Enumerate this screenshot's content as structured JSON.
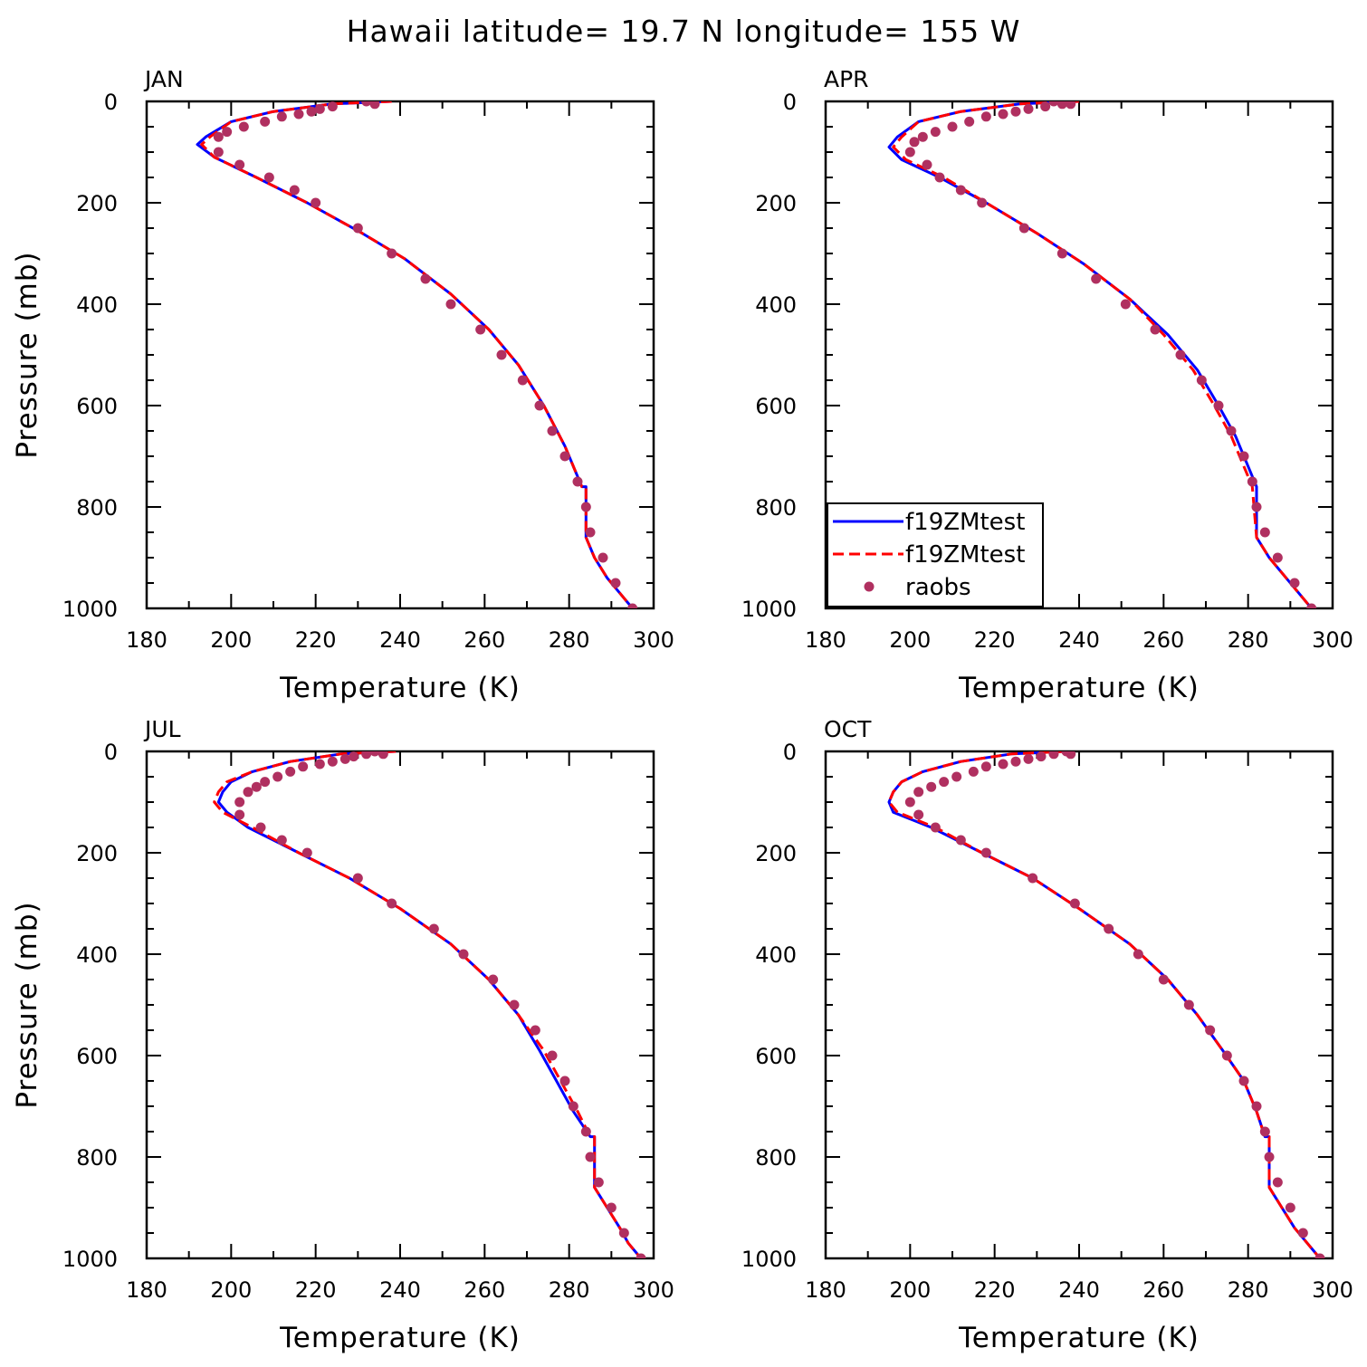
{
  "figure": {
    "title": "Hawaii  latitude= 19.7 N longitude= 155 W"
  },
  "chart_data": [
    {
      "type": "line",
      "panel_label": "JAN",
      "xlabel": "Temperature (K)",
      "ylabel": "Pressure (mb)",
      "xlim": [
        180,
        300
      ],
      "ylim": [
        1000,
        0
      ],
      "xticks": [
        "180",
        "200",
        "220",
        "240",
        "260",
        "280",
        "300"
      ],
      "yticks": [
        "0",
        "200",
        "400",
        "600",
        "800",
        "1000"
      ],
      "legend": false,
      "series": [
        {
          "style": "solid",
          "color": "#0000ff",
          "x": [
            238,
            224,
            210,
            200,
            194,
            192,
            196,
            206,
            218,
            231,
            241,
            252,
            261,
            268,
            274,
            279,
            283,
            284,
            284,
            286,
            289,
            292,
            295
          ],
          "y": [
            0,
            5,
            20,
            40,
            70,
            85,
            110,
            150,
            200,
            260,
            310,
            380,
            450,
            520,
            600,
            680,
            760,
            760,
            860,
            900,
            940,
            970,
            1000
          ]
        },
        {
          "style": "dashed",
          "color": "#ff0000",
          "x": [
            238,
            224,
            210,
            200,
            195,
            193,
            196,
            206,
            218,
            231,
            241,
            252,
            261,
            268,
            274,
            279,
            283,
            284,
            284,
            286,
            289,
            292,
            295
          ],
          "y": [
            0,
            5,
            20,
            40,
            70,
            85,
            110,
            150,
            200,
            260,
            310,
            380,
            450,
            520,
            600,
            680,
            760,
            760,
            860,
            900,
            940,
            970,
            1000
          ]
        },
        {
          "style": "markers",
          "color": "#b03060",
          "x": [
            232,
            234,
            224,
            221,
            219,
            216,
            212,
            208,
            203,
            199,
            197,
            197,
            202,
            209,
            215,
            220,
            230,
            238,
            246,
            252,
            259,
            264,
            269,
            273,
            276,
            279,
            282,
            284,
            285,
            288,
            291,
            295
          ],
          "y": [
            0,
            5,
            10,
            15,
            20,
            25,
            30,
            40,
            50,
            60,
            70,
            100,
            125,
            150,
            175,
            200,
            250,
            300,
            350,
            400,
            450,
            500,
            550,
            600,
            650,
            700,
            750,
            800,
            850,
            900,
            950,
            1000
          ]
        }
      ]
    },
    {
      "type": "line",
      "panel_label": "APR",
      "xlabel": "Temperature (K)",
      "ylabel": "",
      "xlim": [
        180,
        300
      ],
      "ylim": [
        1000,
        0
      ],
      "xticks": [
        "180",
        "200",
        "220",
        "240",
        "260",
        "280",
        "300"
      ],
      "yticks": [
        "0",
        "200",
        "400",
        "600",
        "800",
        "1000"
      ],
      "legend": true,
      "legend_position": "lower-left",
      "legend_entries": [
        {
          "label": "f19ZMtest",
          "style": "solid",
          "color": "#0000ff"
        },
        {
          "label": "f19ZMtest",
          "style": "dashed",
          "color": "#ff0000"
        },
        {
          "label": "raobs",
          "style": "markers",
          "color": "#b03060"
        }
      ],
      "series": [
        {
          "style": "solid",
          "color": "#0000ff",
          "x": [
            240,
            226,
            212,
            202,
            197,
            195,
            198,
            207,
            218,
            230,
            241,
            252,
            261,
            268,
            273,
            277,
            280,
            282,
            282,
            285,
            289,
            292,
            295
          ],
          "y": [
            0,
            5,
            20,
            40,
            70,
            90,
            115,
            150,
            200,
            260,
            320,
            390,
            460,
            530,
            600,
            660,
            720,
            760,
            860,
            900,
            940,
            970,
            1000
          ]
        },
        {
          "style": "dashed",
          "color": "#ff0000",
          "x": [
            240,
            226,
            212,
            202,
            198,
            196,
            199,
            208,
            218,
            230,
            241,
            252,
            260,
            267,
            272,
            276,
            279,
            281,
            282,
            285,
            289,
            292,
            295
          ],
          "y": [
            0,
            5,
            20,
            40,
            70,
            90,
            115,
            150,
            200,
            260,
            320,
            390,
            460,
            530,
            600,
            660,
            720,
            760,
            860,
            900,
            940,
            970,
            1000
          ]
        },
        {
          "style": "markers",
          "color": "#b03060",
          "x": [
            234,
            236,
            238,
            232,
            228,
            225,
            222,
            218,
            214,
            210,
            206,
            203,
            201,
            200,
            204,
            207,
            212,
            217,
            227,
            236,
            244,
            251,
            258,
            264,
            269,
            273,
            276,
            279,
            281,
            282,
            284,
            287,
            291,
            295
          ],
          "y": [
            0,
            5,
            5,
            10,
            15,
            20,
            25,
            30,
            40,
            50,
            60,
            70,
            80,
            100,
            125,
            150,
            175,
            200,
            250,
            300,
            350,
            400,
            450,
            500,
            550,
            600,
            650,
            700,
            750,
            800,
            850,
            900,
            950,
            1000
          ]
        }
      ]
    },
    {
      "type": "line",
      "panel_label": "JUL",
      "xlabel": "Temperature (K)",
      "ylabel": "Pressure (mb)",
      "xlim": [
        180,
        300
      ],
      "ylim": [
        1000,
        0
      ],
      "xticks": [
        "180",
        "200",
        "220",
        "240",
        "260",
        "280",
        "300"
      ],
      "yticks": [
        "0",
        "200",
        "400",
        "600",
        "800",
        "1000"
      ],
      "legend": false,
      "series": [
        {
          "style": "solid",
          "color": "#0000ff",
          "x": [
            239,
            226,
            214,
            205,
            200,
            198,
            197,
            199,
            204,
            216,
            228,
            240,
            252,
            261,
            268,
            273,
            277,
            281,
            285,
            286,
            286,
            289,
            292,
            294,
            297
          ],
          "y": [
            0,
            5,
            20,
            40,
            60,
            80,
            100,
            120,
            150,
            200,
            250,
            310,
            380,
            450,
            520,
            590,
            650,
            710,
            760,
            760,
            860,
            900,
            940,
            970,
            1000
          ]
        },
        {
          "style": "dashed",
          "color": "#ff0000",
          "x": [
            239,
            226,
            214,
            205,
            199,
            197,
            196,
            198,
            205,
            216,
            228,
            240,
            252,
            261,
            268,
            274,
            278,
            282,
            285,
            286,
            286,
            289,
            292,
            294,
            297
          ],
          "y": [
            0,
            5,
            20,
            40,
            60,
            80,
            100,
            120,
            150,
            200,
            250,
            310,
            380,
            450,
            520,
            590,
            650,
            710,
            760,
            760,
            860,
            900,
            940,
            970,
            1000
          ]
        },
        {
          "style": "markers",
          "color": "#b03060",
          "x": [
            234,
            236,
            232,
            229,
            227,
            224,
            221,
            217,
            214,
            211,
            208,
            206,
            204,
            202,
            202,
            207,
            212,
            218,
            230,
            238,
            248,
            255,
            262,
            267,
            272,
            276,
            279,
            281,
            284,
            285,
            287,
            290,
            293,
            297
          ],
          "y": [
            0,
            5,
            5,
            10,
            15,
            20,
            25,
            30,
            40,
            50,
            60,
            70,
            80,
            100,
            125,
            150,
            175,
            200,
            250,
            300,
            350,
            400,
            450,
            500,
            550,
            600,
            650,
            700,
            750,
            800,
            850,
            900,
            950,
            1000
          ]
        }
      ]
    },
    {
      "type": "line",
      "panel_label": "OCT",
      "xlabel": "Temperature (K)",
      "ylabel": "",
      "xlim": [
        180,
        300
      ],
      "ylim": [
        1000,
        0
      ],
      "xticks": [
        "180",
        "200",
        "220",
        "240",
        "260",
        "280",
        "300"
      ],
      "yticks": [
        "0",
        "200",
        "400",
        "600",
        "800",
        "1000"
      ],
      "legend": false,
      "series": [
        {
          "style": "solid",
          "color": "#0000ff",
          "x": [
            237,
            224,
            212,
            203,
            198,
            196,
            195,
            196,
            205,
            217,
            229,
            240,
            252,
            261,
            268,
            274,
            279,
            282,
            284,
            285,
            285,
            288,
            291,
            294,
            297
          ],
          "y": [
            0,
            5,
            20,
            40,
            60,
            80,
            100,
            120,
            150,
            200,
            250,
            310,
            380,
            450,
            520,
            590,
            650,
            710,
            760,
            760,
            860,
            900,
            940,
            970,
            1000
          ]
        },
        {
          "style": "dashed",
          "color": "#ff0000",
          "x": [
            237,
            224,
            212,
            203,
            198,
            196,
            195,
            197,
            206,
            217,
            229,
            240,
            252,
            261,
            268,
            274,
            279,
            282,
            284,
            285,
            285,
            288,
            291,
            294,
            297
          ],
          "y": [
            0,
            5,
            20,
            40,
            60,
            80,
            100,
            120,
            150,
            200,
            250,
            310,
            380,
            450,
            520,
            590,
            650,
            710,
            760,
            760,
            860,
            900,
            940,
            970,
            1000
          ]
        },
        {
          "style": "markers",
          "color": "#b03060",
          "x": [
            237,
            238,
            234,
            231,
            228,
            225,
            222,
            218,
            215,
            211,
            208,
            205,
            202,
            200,
            202,
            206,
            212,
            218,
            229,
            239,
            247,
            254,
            260,
            266,
            271,
            275,
            279,
            282,
            284,
            285,
            287,
            290,
            293,
            297
          ],
          "y": [
            0,
            5,
            5,
            10,
            15,
            20,
            25,
            30,
            40,
            50,
            60,
            70,
            80,
            100,
            125,
            150,
            175,
            200,
            250,
            300,
            350,
            400,
            450,
            500,
            550,
            600,
            650,
            700,
            750,
            800,
            850,
            900,
            950,
            1000
          ]
        }
      ]
    }
  ]
}
